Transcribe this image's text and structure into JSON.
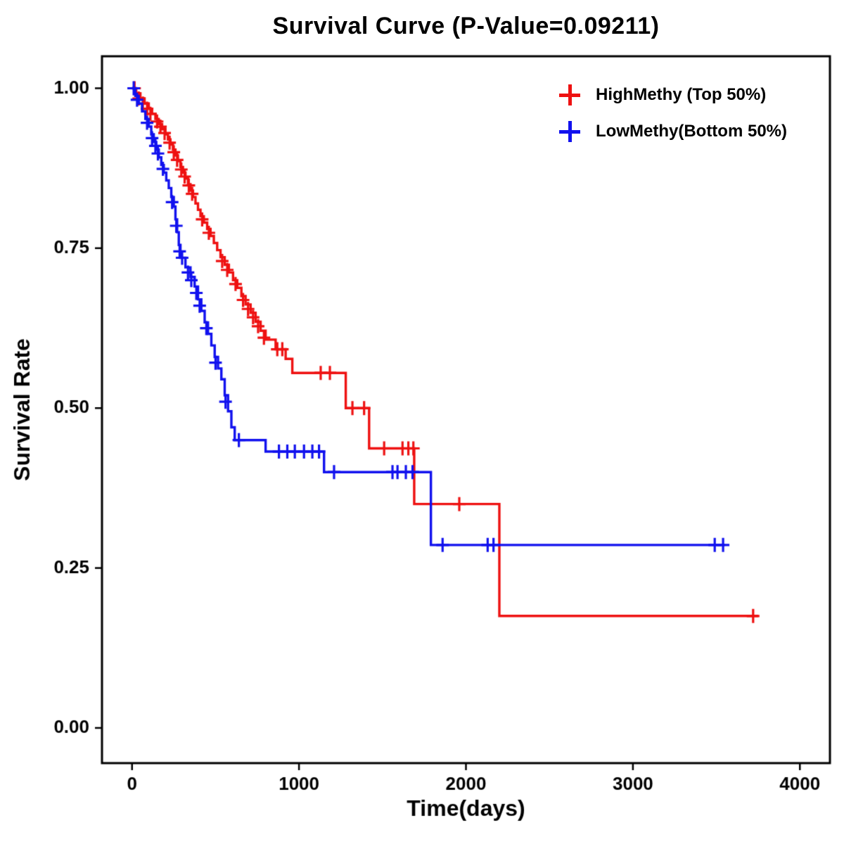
{
  "chart_data": {
    "type": "line",
    "subtype": "kaplan-meier-step",
    "title": "Survival Curve (P-Value=0.09211)",
    "p_value": "0.09211",
    "xlabel": "Time(days)",
    "ylabel": "Survival Rate",
    "xlim": [
      -180,
      4180
    ],
    "ylim": [
      -0.055,
      1.05
    ],
    "x_ticks": [
      0,
      1000,
      2000,
      3000,
      4000
    ],
    "x_tick_labels": [
      "0",
      "1000",
      "2000",
      "3000",
      "4000"
    ],
    "y_ticks": [
      0.0,
      0.25,
      0.5,
      0.75,
      1.0
    ],
    "y_tick_labels": [
      "0.00",
      "0.25",
      "0.50",
      "0.75",
      "1.00"
    ],
    "grid": "off",
    "legend_position": "top-right",
    "series": [
      {
        "name": "HighMethy (Top 50%)",
        "color": "#ee1111",
        "end_time": 3750,
        "steps": [
          [
            0,
            1.0
          ],
          [
            25,
            0.992
          ],
          [
            50,
            0.984
          ],
          [
            75,
            0.976
          ],
          [
            100,
            0.968
          ],
          [
            120,
            0.96
          ],
          [
            140,
            0.952
          ],
          [
            160,
            0.944
          ],
          [
            180,
            0.936
          ],
          [
            200,
            0.928
          ],
          [
            215,
            0.92
          ],
          [
            230,
            0.912
          ],
          [
            245,
            0.904
          ],
          [
            260,
            0.895
          ],
          [
            275,
            0.886
          ],
          [
            290,
            0.877
          ],
          [
            305,
            0.868
          ],
          [
            320,
            0.859
          ],
          [
            335,
            0.85
          ],
          [
            350,
            0.84
          ],
          [
            365,
            0.83
          ],
          [
            380,
            0.82
          ],
          [
            395,
            0.81
          ],
          [
            410,
            0.8
          ],
          [
            430,
            0.79
          ],
          [
            450,
            0.78
          ],
          [
            470,
            0.769
          ],
          [
            490,
            0.758
          ],
          [
            510,
            0.747
          ],
          [
            530,
            0.736
          ],
          [
            555,
            0.724
          ],
          [
            580,
            0.712
          ],
          [
            605,
            0.7
          ],
          [
            630,
            0.688
          ],
          [
            655,
            0.675
          ],
          [
            680,
            0.662
          ],
          [
            710,
            0.649
          ],
          [
            740,
            0.635
          ],
          [
            770,
            0.621
          ],
          [
            800,
            0.607
          ],
          [
            860,
            0.592
          ],
          [
            920,
            0.577
          ],
          [
            960,
            0.555
          ],
          [
            1280,
            0.5
          ],
          [
            1420,
            0.437
          ],
          [
            1690,
            0.35
          ],
          [
            2200,
            0.175
          ]
        ],
        "censors": [
          [
            15,
            1.0
          ],
          [
            40,
            0.984
          ],
          [
            65,
            0.976
          ],
          [
            90,
            0.968
          ],
          [
            110,
            0.96
          ],
          [
            150,
            0.948
          ],
          [
            170,
            0.94
          ],
          [
            195,
            0.93
          ],
          [
            225,
            0.915
          ],
          [
            250,
            0.9
          ],
          [
            270,
            0.888
          ],
          [
            295,
            0.873
          ],
          [
            315,
            0.862
          ],
          [
            340,
            0.848
          ],
          [
            360,
            0.835
          ],
          [
            420,
            0.795
          ],
          [
            460,
            0.774
          ],
          [
            540,
            0.73
          ],
          [
            570,
            0.716
          ],
          [
            620,
            0.694
          ],
          [
            665,
            0.669
          ],
          [
            695,
            0.655
          ],
          [
            725,
            0.642
          ],
          [
            755,
            0.628
          ],
          [
            790,
            0.61
          ],
          [
            870,
            0.592
          ],
          [
            900,
            0.592
          ],
          [
            1130,
            0.555
          ],
          [
            1185,
            0.555
          ],
          [
            1320,
            0.5
          ],
          [
            1390,
            0.5
          ],
          [
            1510,
            0.437
          ],
          [
            1620,
            0.437
          ],
          [
            1655,
            0.437
          ],
          [
            1685,
            0.437
          ],
          [
            1960,
            0.35
          ],
          [
            3720,
            0.175
          ]
        ]
      },
      {
        "name": "LowMethy(Bottom 50%)",
        "color": "#1111ee",
        "end_time": 3550,
        "steps": [
          [
            0,
            1.0
          ],
          [
            20,
            0.988
          ],
          [
            40,
            0.976
          ],
          [
            60,
            0.964
          ],
          [
            80,
            0.952
          ],
          [
            100,
            0.94
          ],
          [
            115,
            0.928
          ],
          [
            130,
            0.916
          ],
          [
            145,
            0.904
          ],
          [
            160,
            0.892
          ],
          [
            175,
            0.88
          ],
          [
            190,
            0.868
          ],
          [
            205,
            0.856
          ],
          [
            220,
            0.844
          ],
          [
            235,
            0.83
          ],
          [
            250,
            0.815
          ],
          [
            260,
            0.795
          ],
          [
            270,
            0.775
          ],
          [
            280,
            0.755
          ],
          [
            290,
            0.735
          ],
          [
            320,
            0.72
          ],
          [
            350,
            0.705
          ],
          [
            375,
            0.69
          ],
          [
            395,
            0.67
          ],
          [
            415,
            0.652
          ],
          [
            435,
            0.634
          ],
          [
            455,
            0.616
          ],
          [
            475,
            0.598
          ],
          [
            495,
            0.58
          ],
          [
            515,
            0.562
          ],
          [
            535,
            0.545
          ],
          [
            555,
            0.52
          ],
          [
            575,
            0.495
          ],
          [
            595,
            0.47
          ],
          [
            615,
            0.45
          ],
          [
            800,
            0.432
          ],
          [
            1150,
            0.4
          ],
          [
            1790,
            0.286
          ]
        ],
        "censors": [
          [
            10,
            1.0
          ],
          [
            30,
            0.982
          ],
          [
            90,
            0.946
          ],
          [
            120,
            0.922
          ],
          [
            140,
            0.91
          ],
          [
            155,
            0.898
          ],
          [
            185,
            0.874
          ],
          [
            240,
            0.822
          ],
          [
            265,
            0.785
          ],
          [
            285,
            0.745
          ],
          [
            300,
            0.735
          ],
          [
            335,
            0.712
          ],
          [
            355,
            0.7
          ],
          [
            385,
            0.68
          ],
          [
            405,
            0.66
          ],
          [
            445,
            0.625
          ],
          [
            500,
            0.571
          ],
          [
            560,
            0.51
          ],
          [
            640,
            0.45
          ],
          [
            880,
            0.432
          ],
          [
            930,
            0.432
          ],
          [
            975,
            0.432
          ],
          [
            1030,
            0.432
          ],
          [
            1080,
            0.432
          ],
          [
            1120,
            0.432
          ],
          [
            1210,
            0.4
          ],
          [
            1560,
            0.4
          ],
          [
            1590,
            0.4
          ],
          [
            1640,
            0.4
          ],
          [
            1680,
            0.4
          ],
          [
            1860,
            0.286
          ],
          [
            2130,
            0.286
          ],
          [
            2165,
            0.286
          ],
          [
            3490,
            0.286
          ],
          [
            3540,
            0.286
          ]
        ]
      }
    ]
  }
}
